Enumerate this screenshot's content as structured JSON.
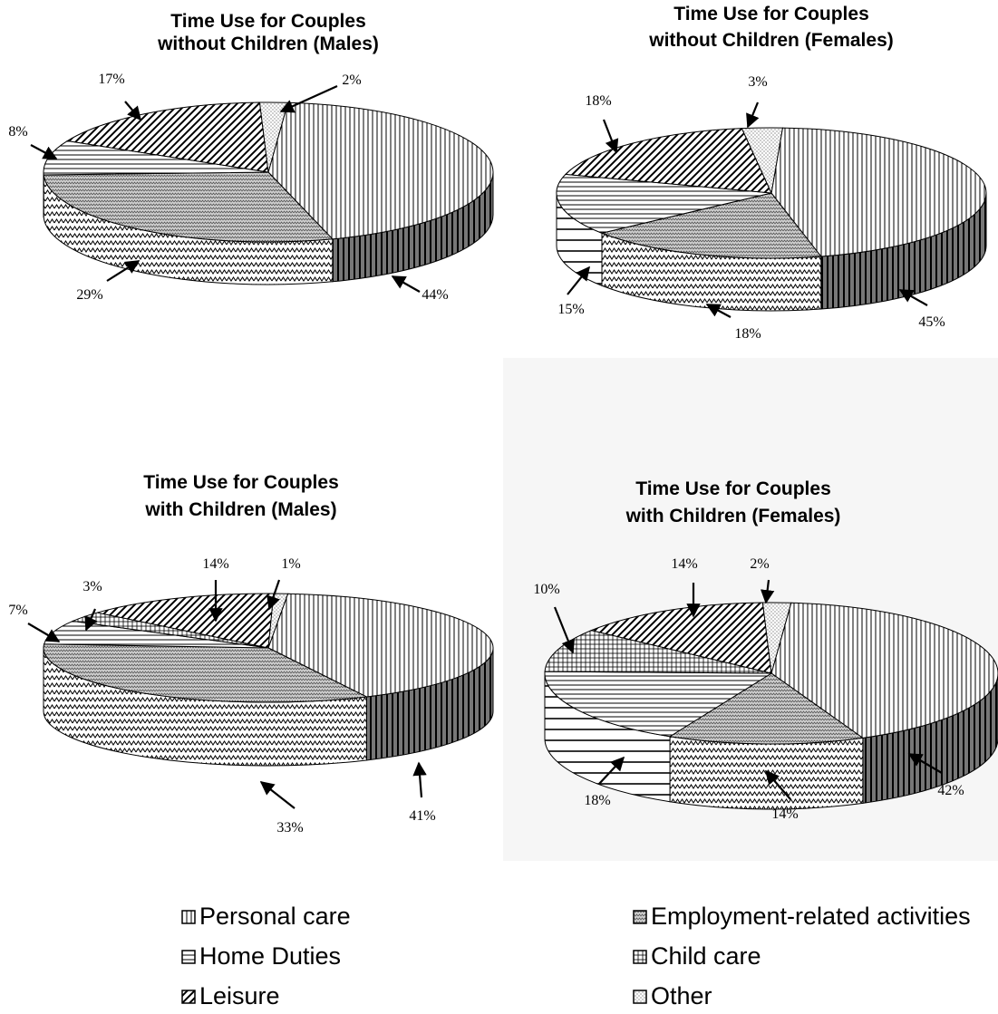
{
  "chart_data": [
    {
      "type": "pie",
      "title": "Time Use for Couples without Children (Males)",
      "slices": [
        {
          "label": "Personal care",
          "value": 44,
          "text": "44%"
        },
        {
          "label": "Employment-related activities",
          "value": 29,
          "text": "29%"
        },
        {
          "label": "Home Duties",
          "value": 8,
          "text": "8%"
        },
        {
          "label": "Leisure",
          "value": 17,
          "text": "17%"
        },
        {
          "label": "Other",
          "value": 2,
          "text": "2%"
        }
      ]
    },
    {
      "type": "pie",
      "title": "Time Use for Couples without Children (Females)",
      "slices": [
        {
          "label": "Personal care",
          "value": 45,
          "text": "45%"
        },
        {
          "label": "Employment-related activities",
          "value": 18,
          "text": "18%"
        },
        {
          "label": "Home Duties",
          "value": 15,
          "text": "15%"
        },
        {
          "label": "Leisure",
          "value": 18,
          "text": "18%"
        },
        {
          "label": "Other",
          "value": 3,
          "text": "3%"
        }
      ]
    },
    {
      "type": "pie",
      "title": "Time Use for Couples with Children (Males)",
      "slices": [
        {
          "label": "Personal care",
          "value": 41,
          "text": "41%"
        },
        {
          "label": "Employment-related activities",
          "value": 33,
          "text": "33%"
        },
        {
          "label": "Home Duties",
          "value": 7,
          "text": "7%"
        },
        {
          "label": "Child care",
          "value": 3,
          "text": "3%"
        },
        {
          "label": "Leisure",
          "value": 14,
          "text": "14%"
        },
        {
          "label": "Other",
          "value": 1,
          "text": "1%"
        }
      ]
    },
    {
      "type": "pie",
      "title": "Time Use for Couples with Children (Females)",
      "slices": [
        {
          "label": "Personal care",
          "value": 42,
          "text": "42%"
        },
        {
          "label": "Employment-related activities",
          "value": 14,
          "text": "14%"
        },
        {
          "label": "Home Duties",
          "value": 18,
          "text": "18%"
        },
        {
          "label": "Child care",
          "value": 10,
          "text": "10%"
        },
        {
          "label": "Leisure",
          "value": 14,
          "text": "14%"
        },
        {
          "label": "Other",
          "value": 2,
          "text": "2%"
        }
      ]
    }
  ],
  "legend": {
    "items": [
      {
        "label": "Personal care",
        "pattern": "vertical-lines"
      },
      {
        "label": "Employment-related activities",
        "pattern": "zigzag"
      },
      {
        "label": "Home Duties",
        "pattern": "horizontal-lines"
      },
      {
        "label": "Child care",
        "pattern": "grid"
      },
      {
        "label": "Leisure",
        "pattern": "diagonal-lines"
      },
      {
        "label": "Other",
        "pattern": "dots"
      }
    ]
  },
  "colors": {
    "ink": "#000000",
    "background": "#ffffff",
    "panel": "#f6f6f6",
    "side": "#9a9a9a"
  }
}
